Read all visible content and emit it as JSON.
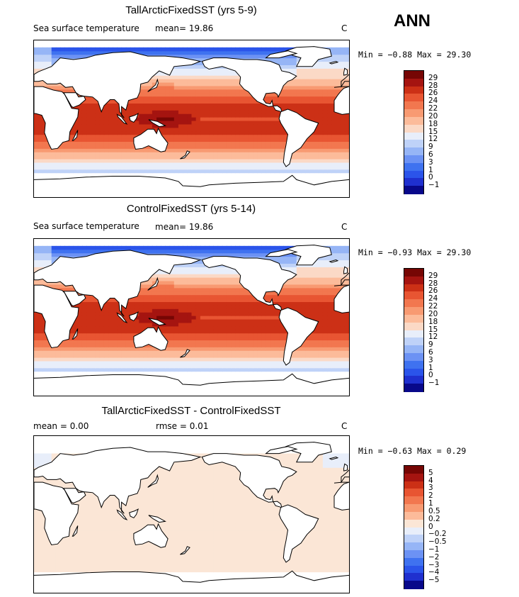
{
  "season": "ANN",
  "units": "C",
  "panels": [
    {
      "title": "TallArcticFixedSST (yrs 5-9)",
      "field": "Sea surface temperature",
      "mean_text": "mean=   19.86",
      "minmax_text": "Min =  −0.88 Max =  29.30",
      "colorbar_labels": [
        "29",
        "28",
        "26",
        "24",
        "22",
        "20",
        "18",
        "15",
        "12",
        "9",
        "6",
        "3",
        "1",
        "0",
        "−1"
      ]
    },
    {
      "title": "ControlFixedSST (yrs 5-14)",
      "field": "Sea surface temperature",
      "mean_text": "mean=   19.86",
      "minmax_text": "Min =  −0.93 Max =  29.30",
      "colorbar_labels": [
        "29",
        "28",
        "26",
        "24",
        "22",
        "20",
        "18",
        "15",
        "12",
        "9",
        "6",
        "3",
        "1",
        "0",
        "−1"
      ]
    },
    {
      "title": "TallArcticFixedSST - ControlFixedSST",
      "mean_text": "mean =    0.00",
      "rmse_text": "rmse =    0.01",
      "minmax_text": "Min =  −0.63 Max =    0.29",
      "colorbar_labels": [
        "5",
        "4",
        "3",
        "2",
        "1",
        "0.5",
        "0.2",
        "0",
        "−0.2",
        "−0.5",
        "−1",
        "−2",
        "−3",
        "−4",
        "−5"
      ]
    }
  ],
  "chart_data": [
    {
      "type": "heatmap",
      "title": "TallArcticFixedSST (yrs 5-9)",
      "subtitle": "Sea surface temperature",
      "units": "C",
      "mean": 19.86,
      "min": -0.88,
      "max": 29.3,
      "levels": [
        -1,
        0,
        1,
        3,
        6,
        9,
        12,
        15,
        18,
        20,
        22,
        24,
        26,
        28,
        29
      ],
      "colors": [
        "#08088a",
        "#1f30cf",
        "#2b54ea",
        "#3f72f0",
        "#6c92f4",
        "#96b5f6",
        "#bfd2f8",
        "#e8eefa",
        "#fbd9c6",
        "#fcbb9a",
        "#f89a72",
        "#f2774f",
        "#e85532",
        "#cc3016",
        "#a51410",
        "#760604"
      ],
      "grid": false,
      "legend": "right"
    },
    {
      "type": "heatmap",
      "title": "ControlFixedSST (yrs 5-14)",
      "subtitle": "Sea surface temperature",
      "units": "C",
      "mean": 19.86,
      "min": -0.93,
      "max": 29.3,
      "levels": [
        -1,
        0,
        1,
        3,
        6,
        9,
        12,
        15,
        18,
        20,
        22,
        24,
        26,
        28,
        29
      ],
      "colors": [
        "#08088a",
        "#1f30cf",
        "#2b54ea",
        "#3f72f0",
        "#6c92f4",
        "#96b5f6",
        "#bfd2f8",
        "#e8eefa",
        "#fbd9c6",
        "#fcbb9a",
        "#f89a72",
        "#f2774f",
        "#e85532",
        "#cc3016",
        "#a51410",
        "#760604"
      ],
      "grid": false,
      "legend": "right"
    },
    {
      "type": "heatmap",
      "title": "TallArcticFixedSST - ControlFixedSST",
      "units": "C",
      "mean": 0.0,
      "rmse": 0.01,
      "min": -0.63,
      "max": 0.29,
      "levels": [
        -5,
        -4,
        -3,
        -2,
        -1,
        -0.5,
        -0.2,
        0,
        0.2,
        0.5,
        1,
        2,
        3,
        4,
        5
      ],
      "colors": [
        "#08088a",
        "#1f30cf",
        "#2b54ea",
        "#3f72f0",
        "#6c92f4",
        "#96b5f6",
        "#bfd2f8",
        "#e8eefa",
        "#fbe6d6",
        "#fcbb9a",
        "#f89a72",
        "#f2774f",
        "#e85532",
        "#cc3016",
        "#a51410",
        "#760604"
      ],
      "grid": false,
      "legend": "right"
    }
  ]
}
